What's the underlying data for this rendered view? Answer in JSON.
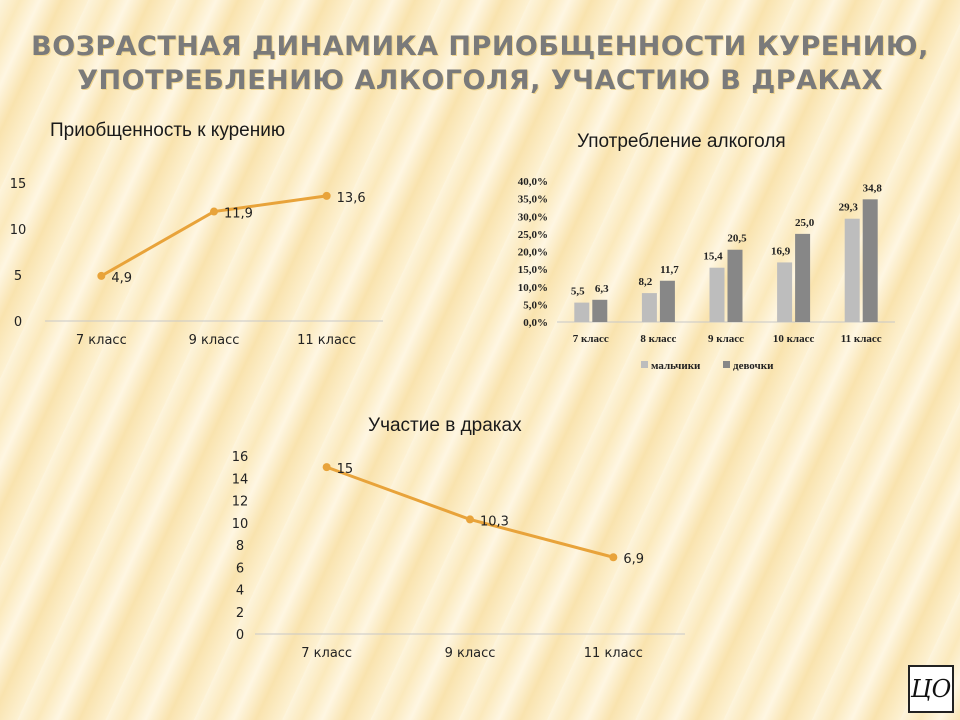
{
  "slide": {
    "title": "ВОЗРАСТНАЯ ДИНАМИКА ПРИОБЩЕННОСТИ КУРЕНИЮ, УПОТРЕБЛЕНИЮ АЛКОГОЛЯ, УЧАСТИЮ В ДРАКАХ",
    "logo_text": "ЦО"
  },
  "colors": {
    "line": "#e8a33a",
    "boys": "#bdbdbd",
    "girls": "#878787"
  },
  "chart_data": [
    {
      "type": "line",
      "title": "Приобщенность к курению",
      "categories": [
        "7 класс",
        "9 класс",
        "11 класс"
      ],
      "values": [
        4.9,
        11.9,
        13.6
      ],
      "value_labels": [
        "4,9",
        "11,9",
        "13,6"
      ],
      "ylim": [
        0,
        15
      ],
      "yticks": [
        0,
        5,
        10,
        15
      ],
      "grid": false
    },
    {
      "type": "bar",
      "title": "Употребление алкоголя",
      "categories": [
        "7 класс",
        "8 класс",
        "9 класс",
        "10 класс",
        "11 класс"
      ],
      "series": [
        {
          "name": "мальчики",
          "values": [
            5.5,
            8.2,
            15.4,
            16.9,
            29.3
          ],
          "labels": [
            "5,5",
            "8,2",
            "15,4",
            "16,9",
            "29,3"
          ]
        },
        {
          "name": "девочки",
          "values": [
            6.3,
            11.7,
            20.5,
            25.0,
            34.8
          ],
          "labels": [
            "6,3",
            "11,7",
            "20,5",
            "25,0",
            "34,8"
          ]
        }
      ],
      "ylim": [
        0,
        40
      ],
      "yticks": [
        "0,0%",
        "5,0%",
        "10,0%",
        "15,0%",
        "20,0%",
        "25,0%",
        "30,0%",
        "35,0%",
        "40,0%"
      ],
      "legend": "bottom",
      "grid": false
    },
    {
      "type": "line",
      "title": "Участие в драках",
      "categories": [
        "7 класс",
        "9 класс",
        "11 класс"
      ],
      "values": [
        15,
        10.3,
        6.9
      ],
      "value_labels": [
        "15",
        "10,3",
        "6,9"
      ],
      "ylim": [
        0,
        16
      ],
      "yticks": [
        0,
        2,
        4,
        6,
        8,
        10,
        12,
        14,
        16
      ],
      "grid": false
    }
  ]
}
